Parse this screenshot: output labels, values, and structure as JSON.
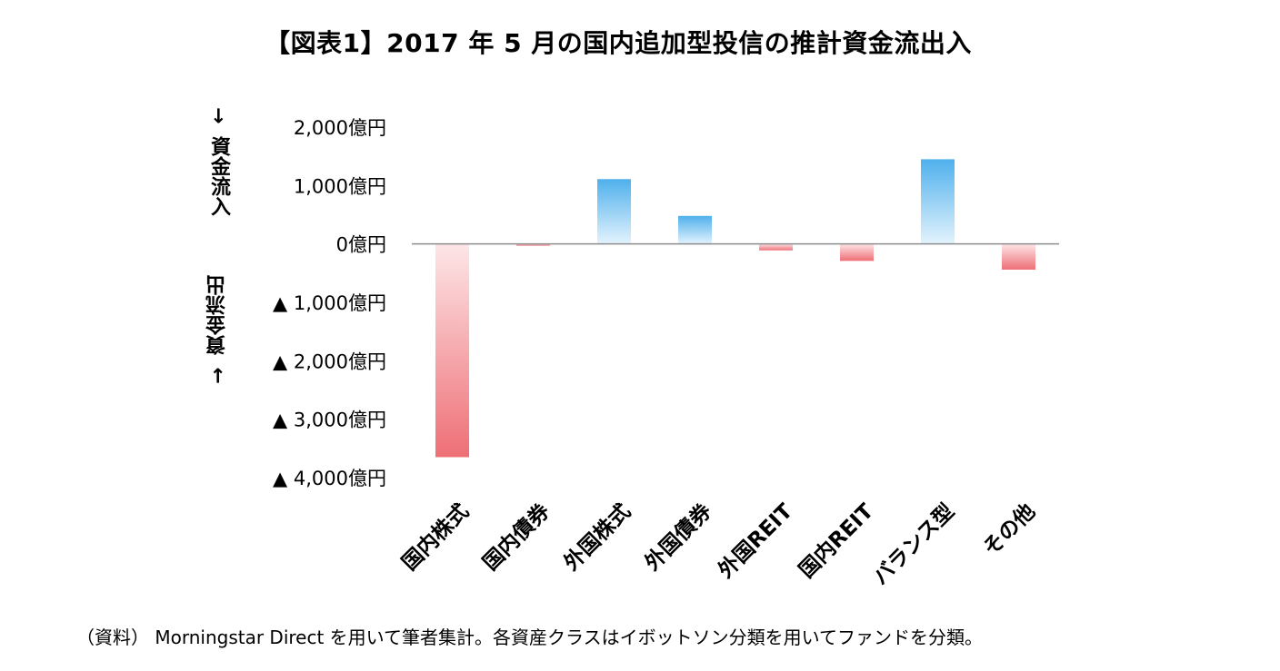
{
  "chart_data": {
    "type": "bar",
    "title": "【図表1】2017 年 5 月の国内追加型投信の推計資金流出入",
    "ylabel_top": "資金流入",
    "ylabel_bottom": "資金流出",
    "arrow_up": "→",
    "arrow_down": "→",
    "unit": "億円",
    "categories": [
      "国内株式",
      "国内債券",
      "外国株式",
      "外国債券",
      "外国REIT",
      "国内REIT",
      "バランス型",
      "その他"
    ],
    "values": [
      -3650,
      -30,
      1110,
      480,
      -110,
      -290,
      1450,
      -440
    ],
    "ylim": [
      -4000,
      2000
    ],
    "yticks": [
      {
        "value": 2000,
        "label": "2,000億円"
      },
      {
        "value": 1000,
        "label": "1,000億円"
      },
      {
        "value": 0,
        "label": "0億円"
      },
      {
        "value": -1000,
        "label": "▲ 1,000億円"
      },
      {
        "value": -2000,
        "label": "▲ 2,000億円"
      },
      {
        "value": -3000,
        "label": "▲ 3,000億円"
      },
      {
        "value": -4000,
        "label": "▲ 4,000億円"
      }
    ],
    "colors": {
      "positive": "#5ab4ee",
      "negative": "#f07a80",
      "zero_line": "#8c8c8c"
    }
  },
  "source_note": "（資料） Morningstar Direct を用いて筆者集計。各資産クラスはイボットソン分類を用いてファンドを分類。"
}
